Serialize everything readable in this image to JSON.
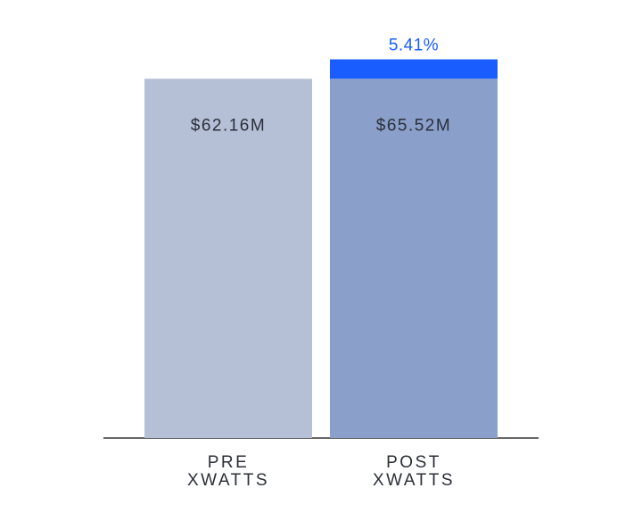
{
  "chart_data": {
    "type": "bar",
    "categories": [
      {
        "line1": "PRE",
        "line2": "XWATTS"
      },
      {
        "line1": "POST",
        "line2": "XWATTS"
      }
    ],
    "values": [
      62.16,
      65.52
    ],
    "value_labels": [
      "$62.16M",
      "$65.52M"
    ],
    "increase": {
      "from_value": 62.16,
      "to_value": 65.52,
      "label": "5.41%"
    },
    "ylim": [
      0,
      70
    ],
    "grid": false,
    "colors": {
      "pre_bar": "#b5c0d7",
      "post_bar": "#8aa0cb",
      "increase": "#1a5dff",
      "increase_text": "#1a5dff",
      "baseline": "#333333"
    }
  }
}
